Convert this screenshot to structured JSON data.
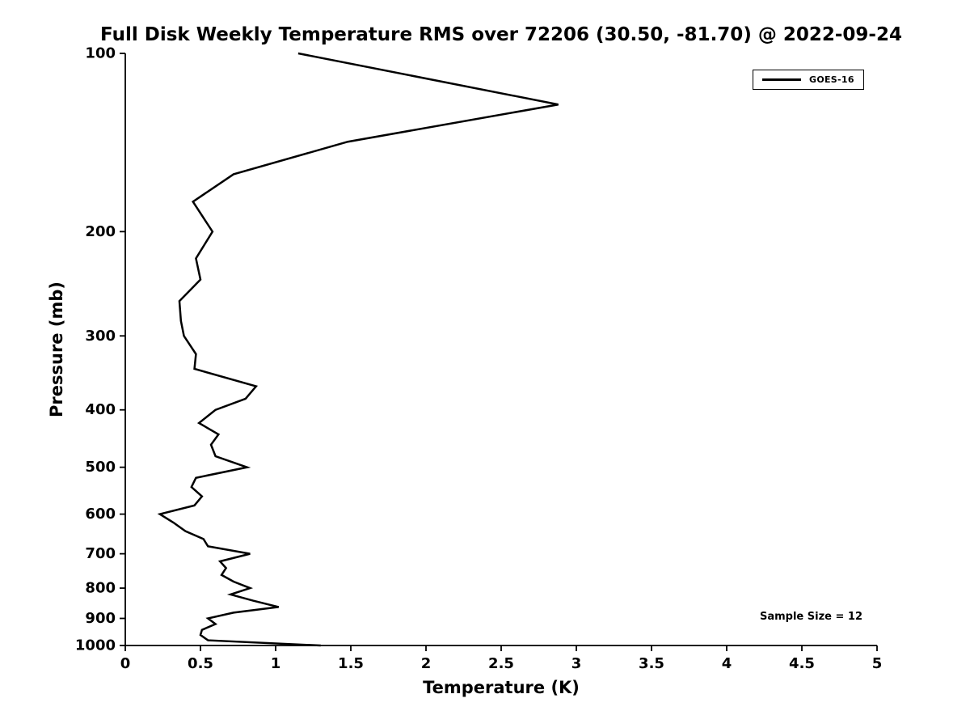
{
  "title": "Full Disk Weekly Temperature RMS over 72206 (30.50, -81.70) @ 2022-09-24",
  "legend": {
    "label": "GOES-16"
  },
  "annotation": "Sample Size = 12",
  "axes": {
    "xlabel": "Temperature (K)",
    "ylabel": "Pressure (mb)"
  },
  "chart_data": {
    "type": "line",
    "title": "Full Disk Weekly Temperature RMS over 72206 (30.50, -81.70) @ 2022-09-24",
    "xlabel": "Temperature (K)",
    "ylabel": "Pressure (mb)",
    "xlim": [
      0,
      5
    ],
    "ylim": [
      100,
      1000
    ],
    "yscale": "log",
    "y_inverted": true,
    "grid": false,
    "legend_position": "upper right",
    "xticks": [
      0,
      0.5,
      1,
      1.5,
      2,
      2.5,
      3,
      3.5,
      4,
      4.5,
      5
    ],
    "xtick_labels": [
      "0",
      "0.5",
      "1",
      "1.5",
      "2",
      "2.5",
      "3",
      "3.5",
      "4",
      "4.5",
      "5"
    ],
    "yticks": [
      100,
      200,
      300,
      400,
      500,
      600,
      700,
      800,
      900,
      1000
    ],
    "ytick_labels": [
      "100",
      "200",
      "300",
      "400",
      "500",
      "600",
      "700",
      "800",
      "900",
      "1000"
    ],
    "annotations": [
      "Sample Size = 12"
    ],
    "series": [
      {
        "name": "GOES-16",
        "color": "#000000",
        "line_width": 2.5,
        "pressure_mb": [
          100,
          122,
          141,
          160,
          178,
          200,
          222,
          241,
          262,
          283,
          300,
          322,
          341,
          365,
          383,
          400,
          421,
          440,
          458,
          479,
          500,
          521,
          540,
          560,
          580,
          600,
          620,
          641,
          661,
          680,
          700,
          721,
          740,
          760,
          780,
          800,
          820,
          840,
          861,
          880,
          900,
          920,
          941,
          960,
          980,
          1000
        ],
        "rms_k": [
          1.15,
          2.88,
          1.48,
          0.72,
          0.45,
          0.58,
          0.47,
          0.5,
          0.36,
          0.37,
          0.39,
          0.47,
          0.46,
          0.87,
          0.8,
          0.6,
          0.49,
          0.62,
          0.57,
          0.6,
          0.81,
          0.47,
          0.44,
          0.51,
          0.46,
          0.23,
          0.32,
          0.4,
          0.52,
          0.55,
          0.83,
          0.63,
          0.67,
          0.64,
          0.72,
          0.83,
          0.7,
          0.85,
          1.02,
          0.72,
          0.55,
          0.6,
          0.51,
          0.5,
          0.55,
          1.3
        ]
      }
    ]
  }
}
